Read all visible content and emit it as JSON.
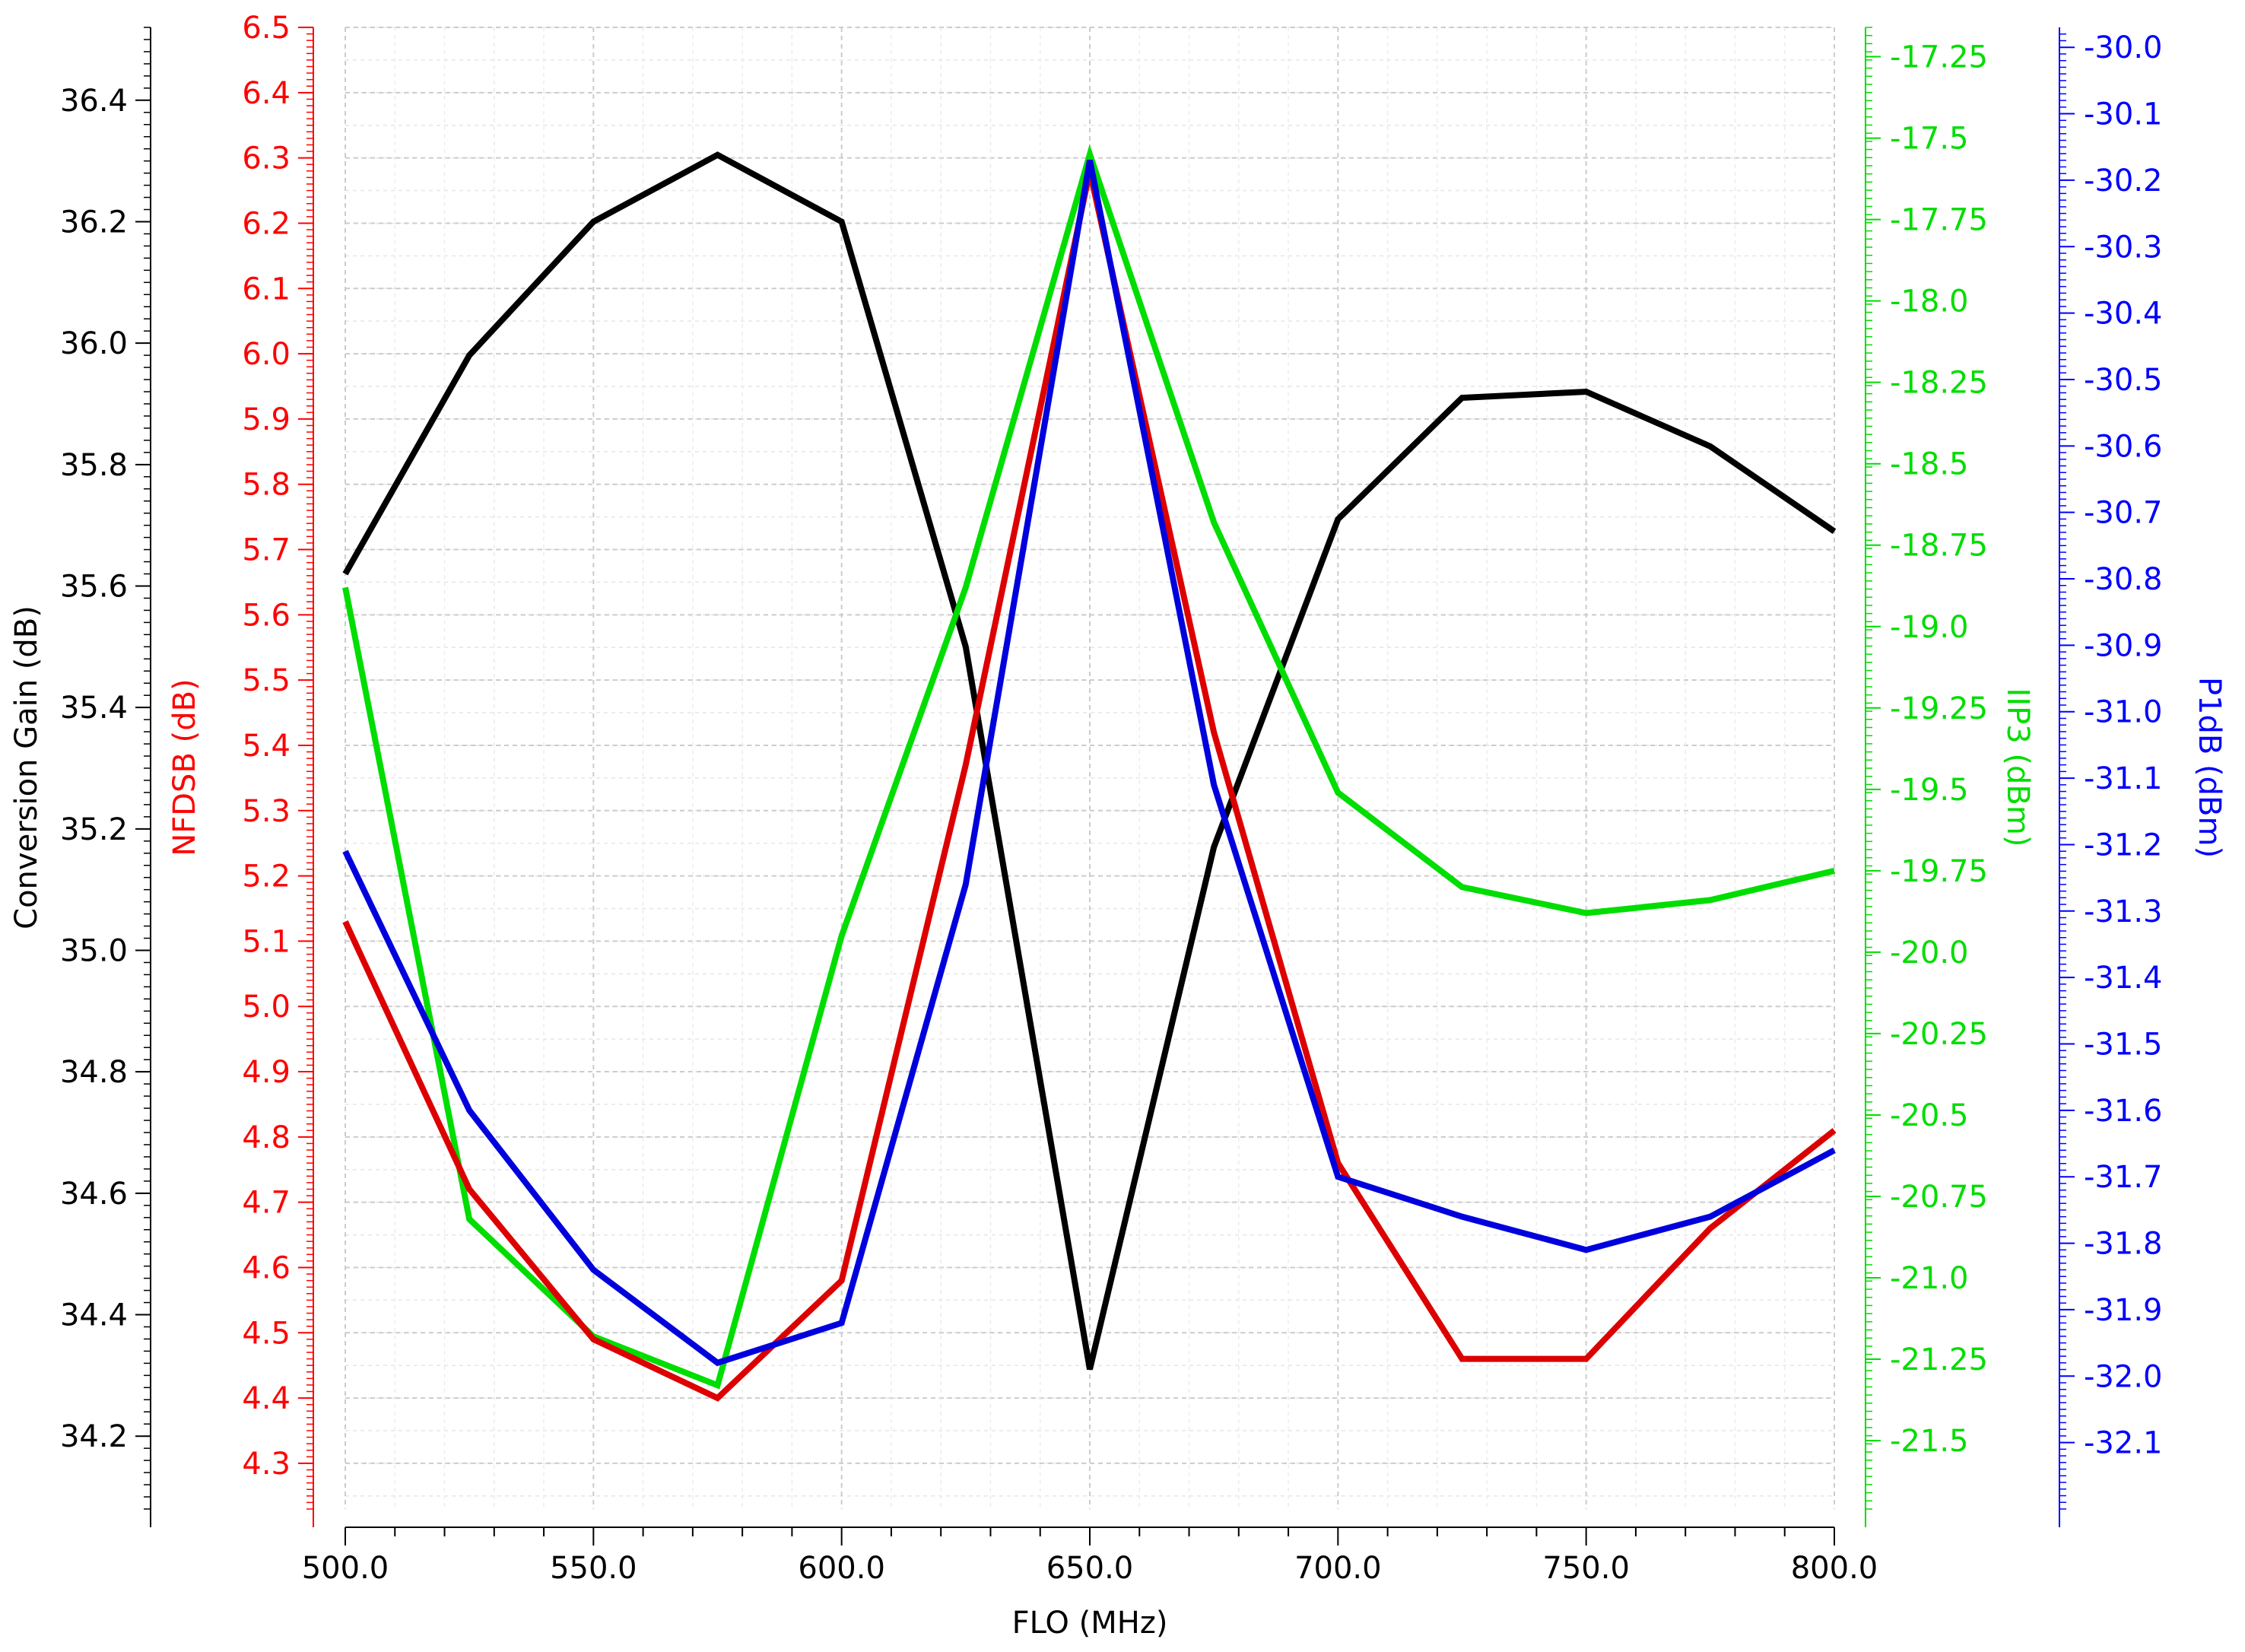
{
  "chart_data": {
    "type": "line",
    "xlabel": "FLO (MHz)",
    "xlim": [
      500,
      800
    ],
    "x": [
      500,
      525,
      550,
      575,
      600,
      625,
      650,
      675,
      700,
      725,
      750,
      775,
      800
    ],
    "x_ticks": [
      500,
      550,
      600,
      650,
      700,
      750,
      800
    ],
    "x_tick_labels": [
      "500.0",
      "550.0",
      "600.0",
      "650.0",
      "700.0",
      "750.0",
      "800.0"
    ],
    "grid": true,
    "axes": [
      {
        "id": "gain",
        "label": "Conversion Gain (dB)",
        "color": "#000000",
        "ylim": [
          34.08,
          36.52
        ],
        "ticks": [
          34.2,
          34.4,
          34.6,
          34.8,
          35.0,
          35.2,
          35.4,
          35.6,
          35.8,
          36.0,
          36.2,
          36.4
        ],
        "tick_labels": [
          "34.2",
          "34.4",
          "34.6",
          "34.8",
          "35.0",
          "35.2",
          "35.4",
          "35.6",
          "35.8",
          "36.0",
          "36.2",
          "36.4"
        ],
        "series_values": [
          35.62,
          35.98,
          36.2,
          36.31,
          36.2,
          35.5,
          34.31,
          35.17,
          35.71,
          35.91,
          35.92,
          35.83,
          35.69
        ]
      },
      {
        "id": "nf",
        "label": "NFDSB (dB)",
        "color": "#ff0000",
        "series_color": "#dd0000",
        "ylim": [
          4.23,
          6.5
        ],
        "ticks": [
          4.3,
          4.4,
          4.5,
          4.6,
          4.7,
          4.8,
          4.9,
          5.0,
          5.1,
          5.2,
          5.3,
          5.4,
          5.5,
          5.6,
          5.7,
          5.8,
          5.9,
          6.0,
          6.1,
          6.2,
          6.3,
          6.4,
          6.5
        ],
        "tick_labels": [
          "4.3",
          "4.4",
          "4.5",
          "4.6",
          "4.7",
          "4.8",
          "4.9",
          "5.0",
          "5.1",
          "5.2",
          "5.3",
          "5.4",
          "5.5",
          "5.6",
          "5.7",
          "5.8",
          "5.9",
          "6.0",
          "6.1",
          "6.2",
          "6.3",
          "6.4",
          "6.5"
        ],
        "series_values": [
          5.13,
          4.72,
          4.49,
          4.4,
          4.58,
          5.37,
          6.28,
          5.42,
          4.76,
          4.46,
          4.46,
          4.66,
          4.81
        ]
      },
      {
        "id": "iip3",
        "label": "IIP3 (dBm)",
        "color": "#00dd00",
        "ylim": [
          -21.71,
          -17.16
        ],
        "ticks": [
          -21.5,
          -21.25,
          -21.0,
          -20.75,
          -20.5,
          -20.25,
          -20.0,
          -19.75,
          -19.5,
          -19.25,
          -19.0,
          -18.75,
          -18.5,
          -18.25,
          -18.0,
          -17.75,
          -17.5,
          -17.25
        ],
        "tick_labels": [
          "-21.5",
          "-21.25",
          "-21.0",
          "-20.75",
          "-20.5",
          "-20.25",
          "-20.0",
          "-19.75",
          "-19.5",
          "-19.25",
          "-19.0",
          "-18.75",
          "-18.5",
          "-18.25",
          "-18.0",
          "-17.75",
          "-17.5",
          "-17.25"
        ],
        "series_values": [
          -18.88,
          -20.82,
          -21.18,
          -21.33,
          -19.95,
          -18.88,
          -17.55,
          -18.68,
          -19.51,
          -19.8,
          -19.88,
          -19.84,
          -19.75
        ]
      },
      {
        "id": "p1db",
        "label": "P1dB (dBm)",
        "color": "#0000ff",
        "series_color": "#0000dd",
        "ylim": [
          -32.2,
          -29.97
        ],
        "ticks": [
          -32.1,
          -32.0,
          -31.9,
          -31.8,
          -31.7,
          -31.6,
          -31.5,
          -31.4,
          -31.3,
          -31.2,
          -31.1,
          -31.0,
          -30.9,
          -30.8,
          -30.7,
          -30.6,
          -30.5,
          -30.4,
          -30.3,
          -30.2,
          -30.1,
          -30.0
        ],
        "tick_labels": [
          "-32.1",
          "-32.0",
          "-31.9",
          "-31.8",
          "-31.7",
          "-31.6",
          "-31.5",
          "-31.4",
          "-31.3",
          "-31.2",
          "-31.1",
          "-31.0",
          "-30.9",
          "-30.8",
          "-30.7",
          "-30.6",
          "-30.5",
          "-30.4",
          "-30.3",
          "-30.2",
          "-30.1",
          "-30.0"
        ],
        "series_values": [
          -31.21,
          -31.6,
          -31.84,
          -31.98,
          -31.92,
          -31.26,
          -30.17,
          -31.11,
          -31.7,
          -31.76,
          -31.81,
          -31.76,
          -31.66
        ]
      }
    ]
  }
}
